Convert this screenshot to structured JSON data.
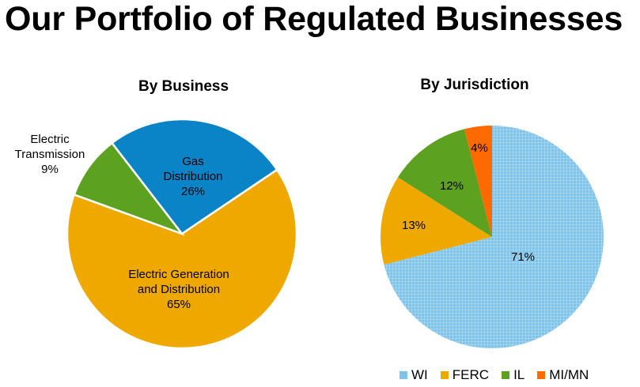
{
  "page_title": "Our Portfolio of Regulated Businesses",
  "colors": {
    "electric_generation": "#EEA800",
    "gas": "#0A84C6",
    "electric_transmission": "#5CA11F",
    "wi": "#7EC3E9",
    "ferc": "#EEA800",
    "il": "#5CA11F",
    "mimn": "#FF6A00"
  },
  "chart_data": [
    {
      "type": "pie",
      "title": "By Business",
      "slices": [
        {
          "label_lines": [
            "Gas",
            "Distribution",
            "26%"
          ],
          "value": 26,
          "color_key": "gas"
        },
        {
          "label_lines": [
            "Electric Generation",
            "and Distribution",
            "65%"
          ],
          "value": 65,
          "color_key": "electric_generation"
        },
        {
          "label_lines": [
            "Electric",
            "Transmission",
            "9%"
          ],
          "value": 9,
          "color_key": "electric_transmission"
        }
      ]
    },
    {
      "type": "pie",
      "title": "By Jurisdiction",
      "slices": [
        {
          "name": "WI",
          "value": 71,
          "label": "71%",
          "color_key": "wi"
        },
        {
          "name": "FERC",
          "value": 13,
          "label": "13%",
          "color_key": "ferc"
        },
        {
          "name": "IL",
          "value": 12,
          "label": "12%",
          "color_key": "il"
        },
        {
          "name": "MI/MN",
          "value": 4,
          "label": "4%",
          "color_key": "mimn"
        }
      ],
      "legend": [
        "WI",
        "FERC",
        "IL",
        "MI/MN"
      ],
      "legend_position": "bottom"
    }
  ]
}
